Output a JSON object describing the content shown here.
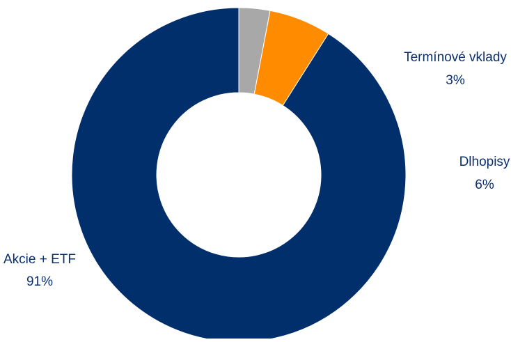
{
  "chart_data": {
    "type": "pie",
    "variant": "donut",
    "start_angle_deg": 90,
    "direction": "counterclockwise",
    "slices": [
      {
        "label": "Akcie + ETF",
        "value": 91,
        "value_label": "91%",
        "color": "#002F6C"
      },
      {
        "label": "Dlhopisy",
        "value": 6,
        "value_label": "6%",
        "color": "#FF8C00"
      },
      {
        "label": "Termínové vklady",
        "value": 3,
        "value_label": "3%",
        "color": "#A8A8A8"
      }
    ],
    "legend": "none",
    "data_labels": "outside"
  }
}
